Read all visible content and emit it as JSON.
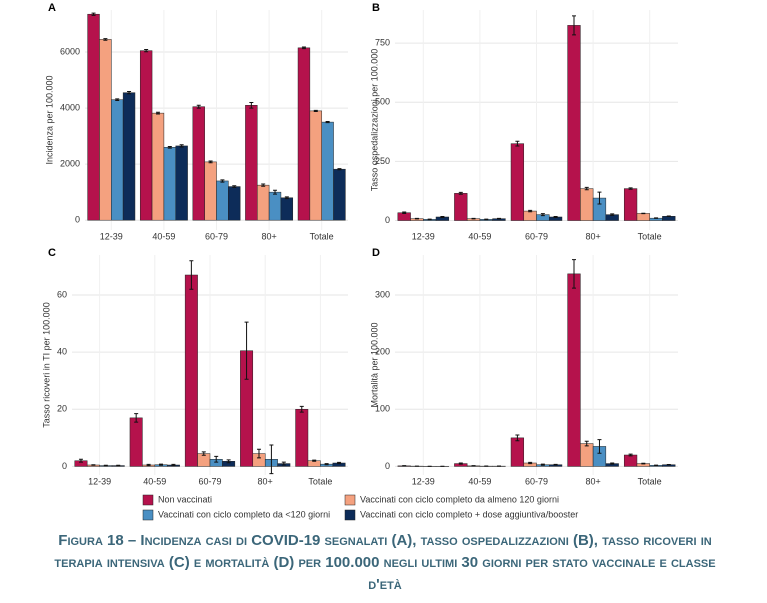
{
  "chart_data": [
    {
      "type": "bar",
      "title": "A",
      "ylabel": "Incidenza per 100.000",
      "categories": [
        "12-39",
        "40-59",
        "60-79",
        "80+",
        "Totale"
      ],
      "series": [
        {
          "values": [
            7350,
            6050,
            4050,
            4100,
            6150
          ],
          "errors": [
            40,
            40,
            50,
            100,
            30
          ]
        },
        {
          "values": [
            6450,
            3820,
            2080,
            1250,
            3900
          ],
          "errors": [
            30,
            30,
            30,
            40,
            20
          ]
        },
        {
          "values": [
            4300,
            2600,
            1400,
            1000,
            3500
          ],
          "errors": [
            30,
            30,
            40,
            70,
            20
          ]
        },
        {
          "values": [
            4550,
            2650,
            1200,
            800,
            1820
          ],
          "errors": [
            40,
            40,
            30,
            30,
            20
          ]
        }
      ],
      "ylim": [
        -350,
        7500
      ],
      "yticks": [
        0,
        2000,
        4000,
        6000
      ],
      "grid": true
    },
    {
      "type": "bar",
      "title": "B",
      "ylabel": "Tasso ospedalizzazioni per 100.000",
      "categories": [
        "12-39",
        "40-59",
        "60-79",
        "80+",
        "Totale"
      ],
      "series": [
        {
          "values": [
            33,
            115,
            325,
            825,
            135
          ],
          "errors": [
            3,
            4,
            10,
            40,
            3
          ]
        },
        {
          "values": [
            8,
            8,
            40,
            135,
            30
          ],
          "errors": [
            1,
            1,
            3,
            5,
            1
          ]
        },
        {
          "values": [
            5,
            5,
            25,
            95,
            10
          ],
          "errors": [
            1,
            1,
            4,
            25,
            1
          ]
        },
        {
          "values": [
            15,
            8,
            15,
            25,
            18
          ],
          "errors": [
            2,
            1,
            2,
            3,
            1
          ]
        }
      ],
      "ylim": [
        -40,
        890
      ],
      "yticks": [
        0,
        250,
        500,
        750
      ],
      "grid": true
    },
    {
      "type": "bar",
      "title": "C",
      "ylabel": "Tasso ricoveri in TI per 100.000",
      "categories": [
        "12-39",
        "40-59",
        "60-79",
        "80+",
        "Totale"
      ],
      "series": [
        {
          "values": [
            2,
            17,
            67,
            40.5,
            20
          ],
          "errors": [
            0.5,
            1.5,
            5,
            10,
            1
          ]
        },
        {
          "values": [
            0.5,
            0.5,
            4.5,
            4.5,
            2
          ],
          "errors": [
            0.1,
            0.2,
            0.6,
            1.5,
            0.2
          ]
        },
        {
          "values": [
            0.3,
            0.6,
            2.5,
            2.5,
            0.8
          ],
          "errors": [
            0.1,
            0.2,
            1,
            5,
            0.2
          ]
        },
        {
          "values": [
            0.3,
            0.5,
            1.8,
            1,
            1.2
          ],
          "errors": [
            0.1,
            0.2,
            0.5,
            0.5,
            0.2
          ]
        }
      ],
      "ylim": [
        -3,
        74
      ],
      "yticks": [
        0,
        20,
        40,
        60
      ],
      "grid": true
    },
    {
      "type": "bar",
      "title": "D",
      "ylabel": "Mortalità per 100.000",
      "categories": [
        "12-39",
        "40-59",
        "60-79",
        "80+",
        "Totale"
      ],
      "series": [
        {
          "values": [
            1,
            5,
            50,
            337,
            20
          ],
          "errors": [
            0.3,
            1,
            5,
            25,
            1.5
          ]
        },
        {
          "values": [
            0.5,
            1,
            6,
            40,
            5
          ],
          "errors": [
            0.1,
            0.3,
            1,
            4,
            0.5
          ]
        },
        {
          "values": [
            0.3,
            0.5,
            3,
            35,
            2
          ],
          "errors": [
            0.1,
            0.2,
            1,
            12,
            0.3
          ]
        },
        {
          "values": [
            0.3,
            0.5,
            3,
            5,
            3
          ],
          "errors": [
            0.1,
            0.2,
            0.5,
            1,
            0.3
          ]
        }
      ],
      "ylim": [
        -15,
        370
      ],
      "yticks": [
        0,
        100,
        200,
        300
      ],
      "grid": true
    }
  ],
  "legend": [
    {
      "name": "Non vaccinati",
      "color": "#b5124c"
    },
    {
      "name": "Vaccinati con ciclo completo da almeno 120 giorni",
      "color": "#f4a17f"
    },
    {
      "name": "Vaccinati con ciclo completo da <120 giorni",
      "color": "#4a8fc3"
    },
    {
      "name": "Vaccinati con ciclo completo + dose aggiuntiva/booster",
      "color": "#0d2c59"
    }
  ],
  "caption": "Figura 18 – Incidenza casi di COVID-19 segnalati (A), tasso ospedalizzazioni (B), tasso ricoveri in terapia intensiva (C) e mortalità (D) per 100.000 negli ultimi 30 giorni per stato vaccinale e classe d'età"
}
